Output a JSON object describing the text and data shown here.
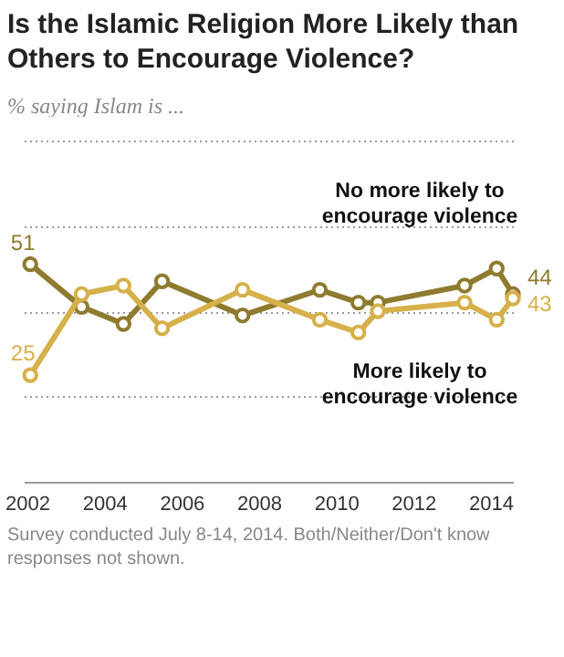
{
  "chart_data": {
    "type": "line",
    "title": "Is the Islamic Religion More Likely than Others to Encourage Violence?",
    "subtitle": "% saying Islam is ...",
    "x": [
      "2002-02",
      "2003-06",
      "2004-07",
      "2005-07",
      "2007-08",
      "2009-08",
      "2010-08",
      "2011-02",
      "2013-05",
      "2014-03",
      "2014-08"
    ],
    "series": [
      {
        "name": "No more likely to encourage violence",
        "color": "#8f7b2f",
        "values": [
          51,
          41,
          37,
          47,
          39,
          45,
          42,
          42,
          46,
          50,
          44
        ],
        "value_labels": [
          "51",
          null,
          null,
          null,
          null,
          null,
          null,
          null,
          null,
          null,
          "44"
        ]
      },
      {
        "name": "More likely to encourage violence",
        "color": "#d6b04a",
        "values": [
          25,
          44,
          46,
          36,
          45,
          38,
          35,
          40,
          42,
          38,
          43
        ],
        "value_labels": [
          "25",
          null,
          null,
          null,
          null,
          null,
          null,
          null,
          null,
          null,
          "43"
        ]
      }
    ],
    "xlim": [
      "2001-12",
      "2014-08"
    ],
    "xticks": [
      "2002",
      "2004",
      "2006",
      "2008",
      "2010",
      "2012",
      "2014"
    ],
    "ylim": [
      0,
      80
    ],
    "yticks": [
      0,
      20,
      40,
      60,
      80
    ],
    "tick_labels": "x",
    "grid": "y",
    "marker": "circle",
    "annotations": [
      "Survey conducted July 8-14, 2014. Both/Neither/Don't know responses not shown."
    ]
  }
}
